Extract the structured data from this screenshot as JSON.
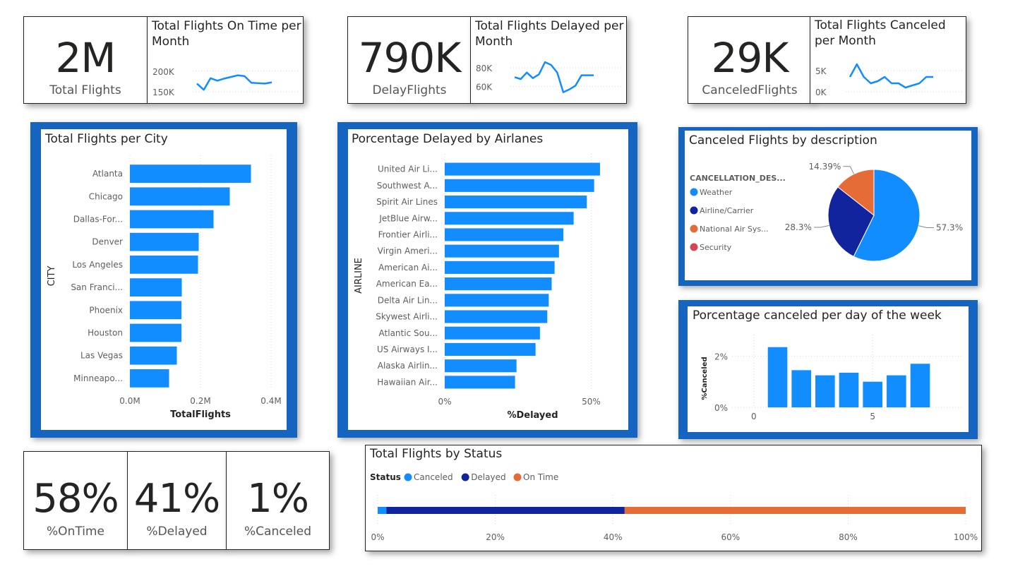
{
  "kpi": {
    "total_flights": {
      "value": "2M",
      "label": "Total Flights"
    },
    "delay_flights": {
      "value": "790K",
      "label": "DelayFlights"
    },
    "canceled_flights": {
      "value": "29K",
      "label": "CanceledFlights"
    },
    "on_time_pct": {
      "value": "58%",
      "label": "%OnTime"
    },
    "delayed_pct": {
      "value": "41%",
      "label": "%Delayed"
    },
    "canceled_pct": {
      "value": "1%",
      "label": "%Canceled"
    }
  },
  "colors": {
    "accent": "#118DFF",
    "navy": "#12239E",
    "orange": "#E66C37",
    "red": "#D64550",
    "frame": "#1565C0"
  },
  "chart_data": [
    {
      "id": "ontime_month",
      "type": "line",
      "title": "Total Flights On Time per Month",
      "ytick_labels": [
        "200K",
        "150K"
      ],
      "yticks": [
        200000,
        150000
      ],
      "ylim": [
        140000,
        215000
      ],
      "x": [
        1,
        2,
        3,
        4,
        5,
        6,
        7,
        8,
        9,
        10,
        11,
        12
      ],
      "values": [
        170000,
        155000,
        183000,
        177000,
        182000,
        186000,
        190000,
        188000,
        172000,
        171000,
        170000,
        173000
      ]
    },
    {
      "id": "delayed_month",
      "type": "line",
      "title": "Total Flights Delayed per Month",
      "ytick_labels": [
        "80K",
        "60K"
      ],
      "yticks": [
        80000,
        60000
      ],
      "ylim": [
        50000,
        95000
      ],
      "x": [
        1,
        2,
        3,
        4,
        5,
        6,
        7,
        8,
        9,
        10,
        11,
        12,
        13,
        14
      ],
      "values": [
        70000,
        68000,
        75000,
        69000,
        73000,
        86000,
        83000,
        75000,
        54000,
        57000,
        61000,
        72000,
        72000,
        72000
      ]
    },
    {
      "id": "canceled_month",
      "type": "line",
      "title": "Total Flights Canceled per Month",
      "ytick_labels": [
        "5K",
        "0K"
      ],
      "yticks": [
        5000,
        0
      ],
      "ylim": [
        -1000,
        9000
      ],
      "x": [
        1,
        2,
        3,
        4,
        5,
        6,
        7,
        8,
        9,
        10,
        11,
        12,
        13
      ],
      "values": [
        3500,
        6500,
        3500,
        2000,
        2500,
        3500,
        2000,
        2000,
        1000,
        1500,
        2000,
        3500,
        3500
      ]
    },
    {
      "id": "flights_city",
      "type": "bar",
      "title": "Total Flights per City",
      "categories": [
        "Atlanta",
        "Chicago",
        "Dallas-For...",
        "Denver",
        "Los Angeles",
        "San Franci...",
        "Phoenix",
        "Houston",
        "Las Vegas",
        "Minneapo..."
      ],
      "values": [
        343000,
        283000,
        237000,
        195000,
        193000,
        147000,
        146000,
        146000,
        133000,
        111000
      ],
      "xlabel": "TotalFlights",
      "ylabel": "CITY",
      "xlim": [
        0,
        400000
      ],
      "xtick_labels": [
        "0.0M",
        "0.2M",
        "0.4M"
      ],
      "xticks": [
        0,
        200000,
        400000
      ]
    },
    {
      "id": "delayed_airline",
      "type": "bar",
      "title": "Porcentage Delayed by Airlanes",
      "categories": [
        "United Air Li...",
        "Southwest A...",
        "Spirit Air Lines",
        "JetBlue Airw...",
        "Frontier Airli...",
        "Virgin Ameri...",
        "American Ai...",
        "American Ea...",
        "Delta Air Lin...",
        "Skywest Airli...",
        "Atlantic Sou...",
        "US Airways I...",
        "Alaska Airlin...",
        "Hawaiian Air..."
      ],
      "values": [
        53,
        51,
        48.5,
        44,
        40.5,
        39,
        37.5,
        36.5,
        35.5,
        35,
        32.5,
        31,
        24.5,
        24
      ],
      "xlabel": "%Delayed",
      "ylabel": "AIRLINE",
      "xlim": [
        0,
        60
      ],
      "xtick_labels": [
        "0%",
        "50%"
      ],
      "xticks": [
        0,
        50
      ]
    },
    {
      "id": "canceled_desc",
      "type": "pie",
      "title": "Canceled Flights by description",
      "legend_title": "CANCELLATION_DES...",
      "labels": [
        "Weather",
        "Airline/Carrier",
        "National Air Sys...",
        "Security"
      ],
      "values": [
        57.3,
        28.3,
        14.39,
        0.01
      ],
      "data_labels": [
        "57.3%",
        "28.3%",
        "14.39%",
        ""
      ],
      "colors": [
        "#118DFF",
        "#12239E",
        "#E66C37",
        "#D64550"
      ]
    },
    {
      "id": "canceled_weekday",
      "type": "bar",
      "title": "Porcentage canceled per day of the week",
      "ylabel": "%Canceled",
      "x": [
        1,
        2,
        3,
        4,
        5,
        6,
        7
      ],
      "values": [
        2.35,
        1.45,
        1.25,
        1.35,
        1.0,
        1.25,
        1.7
      ],
      "ylim": [
        0,
        2.7
      ],
      "ytick_labels": [
        "0%",
        "2%"
      ],
      "yticks": [
        0,
        2
      ],
      "xtick_labels": [
        "0",
        "5"
      ],
      "xticks": [
        0,
        5
      ],
      "xlim": [
        -0.5,
        8.5
      ]
    },
    {
      "id": "status",
      "type": "bar",
      "stacked": "100%",
      "title": "Total Flights by Status",
      "legend_title": "Status",
      "series": [
        {
          "name": "Canceled",
          "value": 1.5,
          "color": "#118DFF"
        },
        {
          "name": "Delayed",
          "value": 40.5,
          "color": "#12239E"
        },
        {
          "name": "On Time",
          "value": 58,
          "color": "#E66C37"
        }
      ],
      "xtick_labels": [
        "0%",
        "20%",
        "40%",
        "60%",
        "80%",
        "100%"
      ],
      "xticks": [
        0,
        20,
        40,
        60,
        80,
        100
      ]
    }
  ]
}
